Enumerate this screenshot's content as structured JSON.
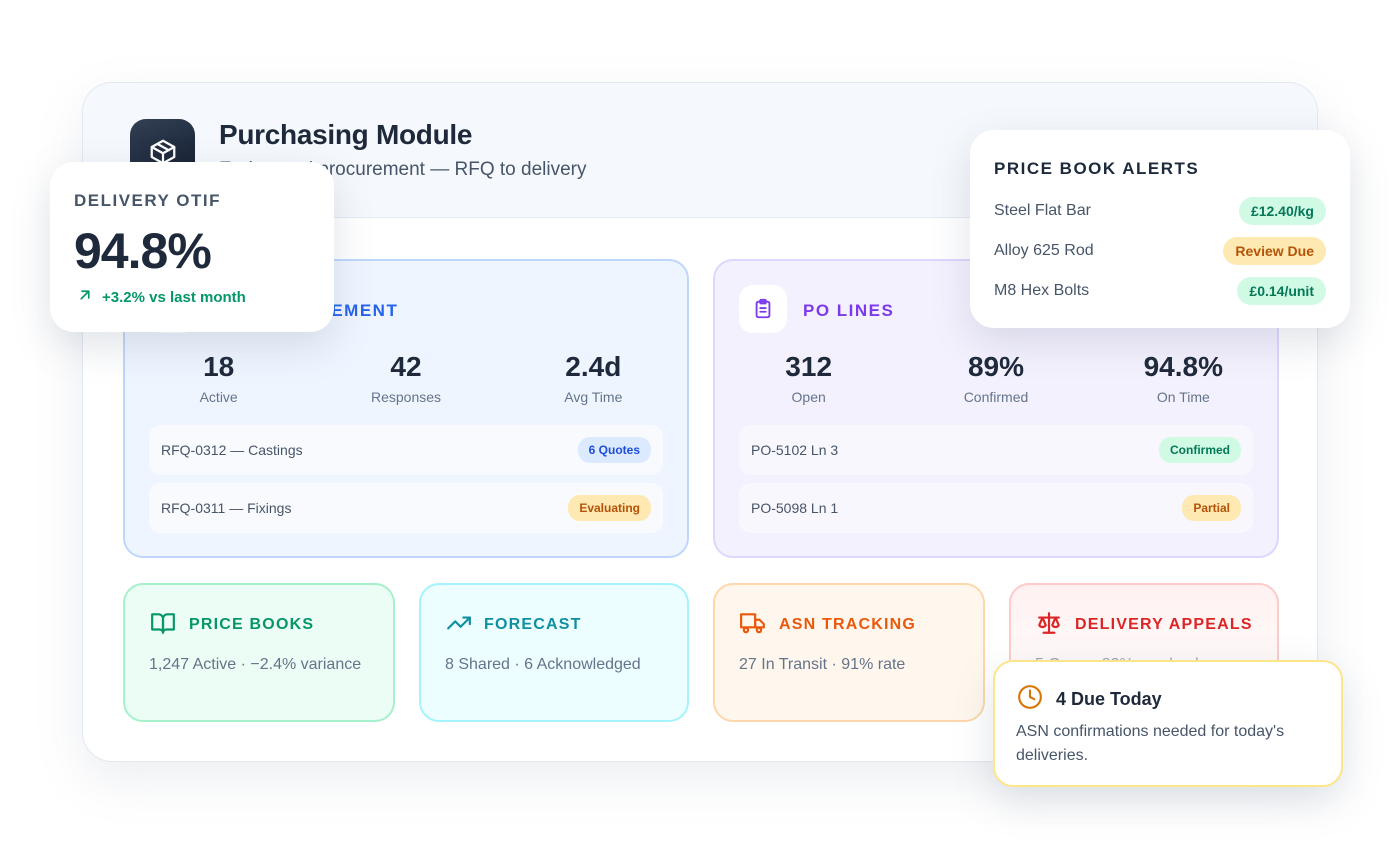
{
  "header": {
    "title": "Purchasing Module",
    "subtitle": "End-to-end procurement — RFQ to delivery",
    "icon": "package-icon"
  },
  "rfq_panel": {
    "title": "RFQ MANAGEMENT",
    "icon": "file-text-icon",
    "color": "#2563eb",
    "stats": [
      {
        "value": "18",
        "label": "Active"
      },
      {
        "value": "42",
        "label": "Responses"
      },
      {
        "value": "2.4d",
        "label": "Avg Time"
      }
    ],
    "rows": [
      {
        "label": "RFQ-0312 — Castings",
        "badge": "6 Quotes"
      },
      {
        "label": "RFQ-0311 — Fixings",
        "badge": "Evaluating"
      }
    ]
  },
  "po_panel": {
    "title": "PO LINES",
    "icon": "clipboard-list-icon",
    "color": "#7c3aed",
    "stats": [
      {
        "value": "312",
        "label": "Open"
      },
      {
        "value": "89%",
        "label": "Confirmed"
      },
      {
        "value": "94.8%",
        "label": "On Time"
      }
    ],
    "rows": [
      {
        "label": "PO-5102 Ln 3",
        "badge": "Confirmed"
      },
      {
        "label": "PO-5098 Ln 1",
        "badge": "Partial"
      }
    ]
  },
  "cards": {
    "price_books": {
      "title": "PRICE BOOKS",
      "text": "1,247 Active · −2.4% variance",
      "icon": "book-open-icon",
      "color": "#059669"
    },
    "forecast": {
      "title": "FORECAST",
      "text": "8 Shared · 6 Acknowledged",
      "icon": "trending-up-icon",
      "color": "#0e8fa3"
    },
    "asn": {
      "title": "ASN TRACKING",
      "text": "27 In Transit · 91% rate",
      "icon": "truck-icon",
      "color": "#ea580c"
    },
    "appeals": {
      "title": "DELIVERY APPEALS",
      "text": "5 Open · 83% resolved",
      "icon": "scale-icon",
      "color": "#dc2626"
    }
  },
  "otif": {
    "label": "DELIVERY OTIF",
    "value": "94.8%",
    "trend": "+3.2% vs last month",
    "trend_icon": "arrow-up-right-icon"
  },
  "alerts": {
    "title": "PRICE BOOK ALERTS",
    "items": [
      {
        "label": "Steel Flat Bar",
        "badge": "£12.40/kg"
      },
      {
        "label": "Alloy 625 Rod",
        "badge": "Review Due"
      },
      {
        "label": "M8 Hex Bolts",
        "badge": "£0.14/unit"
      }
    ]
  },
  "due": {
    "title": "4 Due Today",
    "text": "ASN confirmations needed for today's deliveries.",
    "icon": "clock-icon"
  }
}
